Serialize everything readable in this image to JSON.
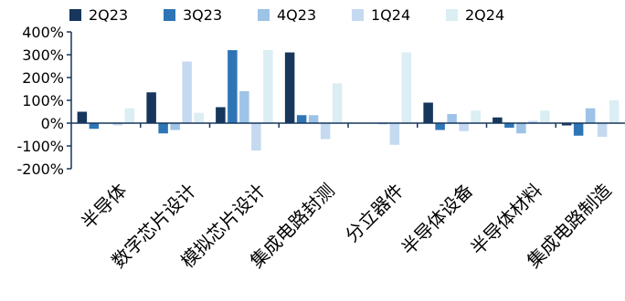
{
  "chart_data": {
    "type": "bar",
    "title": "",
    "xlabel": "",
    "ylabel": "",
    "ylim": [
      -200,
      400
    ],
    "yticks": [
      -200,
      -100,
      0,
      100,
      200,
      300,
      400
    ],
    "ytick_labels": [
      "-200%",
      "-100%",
      "0%",
      "100%",
      "200%",
      "300%",
      "400%"
    ],
    "grid": false,
    "legend_position": "top",
    "categories": [
      "半导体",
      "数字芯片设计",
      "模拟芯片设计",
      "集成电路封测",
      "分立器件",
      "半导体设备",
      "半导体材料",
      "集成电路制造"
    ],
    "series": [
      {
        "name": "2Q23",
        "color": "#16365c",
        "values": [
          50,
          135,
          70,
          310,
          0,
          90,
          25,
          -10
        ]
      },
      {
        "name": "3Q23",
        "color": "#2e75b6",
        "values": [
          -25,
          -45,
          320,
          35,
          0,
          -30,
          -20,
          -55
        ]
      },
      {
        "name": "4Q23",
        "color": "#9dc3e6",
        "values": [
          0,
          -30,
          140,
          35,
          -5,
          40,
          -45,
          65
        ]
      },
      {
        "name": "1Q24",
        "color": "#c5d9f1",
        "values": [
          -10,
          270,
          -120,
          -70,
          -95,
          -35,
          10,
          -60
        ]
      },
      {
        "name": "2Q24",
        "color": "#daeef3",
        "values": [
          65,
          45,
          320,
          175,
          310,
          55,
          55,
          100
        ]
      }
    ]
  }
}
